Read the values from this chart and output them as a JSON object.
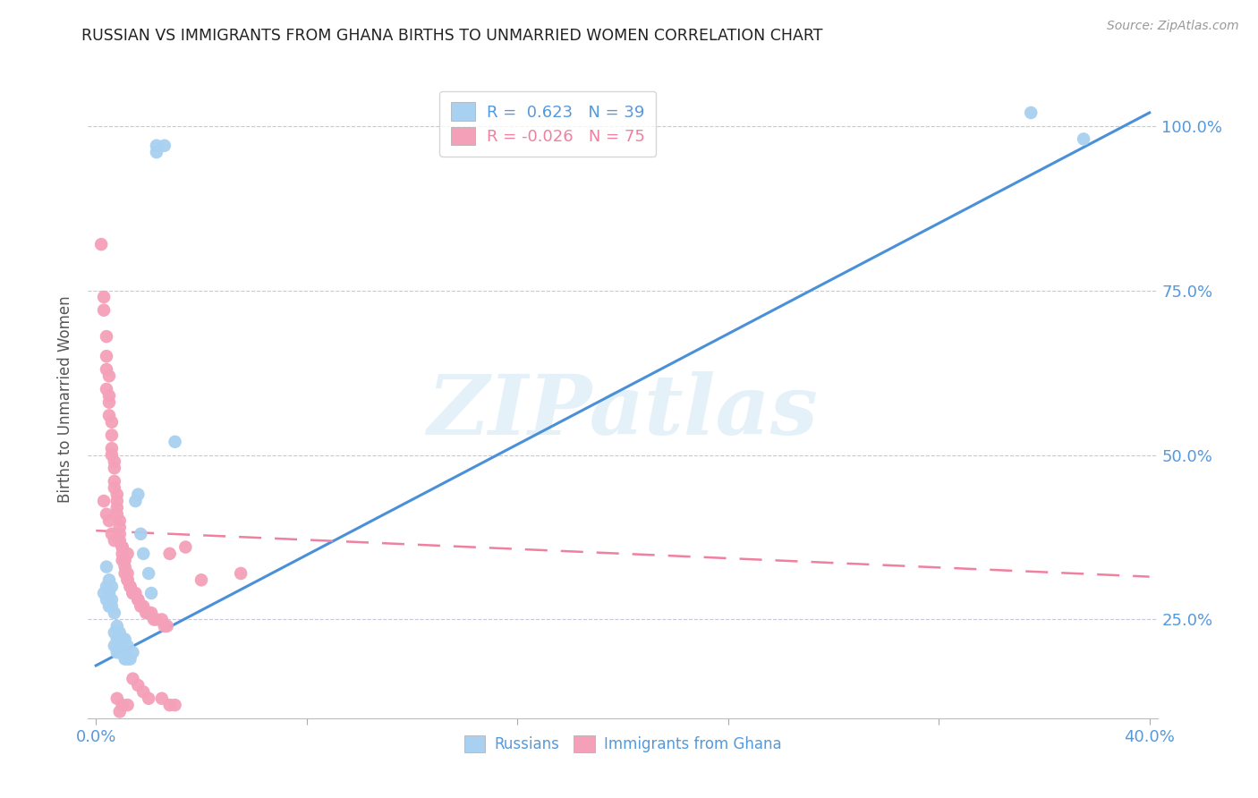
{
  "title": "RUSSIAN VS IMMIGRANTS FROM GHANA BIRTHS TO UNMARRIED WOMEN CORRELATION CHART",
  "source": "Source: ZipAtlas.com",
  "ylabel": "Births to Unmarried Women",
  "legend_russian": {
    "R": " 0.623",
    "N": "39"
  },
  "legend_ghana": {
    "R": "-0.026",
    "N": "75"
  },
  "watermark": "ZIPatlas",
  "russian_color": "#a8d0f0",
  "ghana_color": "#f4a0b8",
  "russian_line_color": "#4a90d9",
  "ghana_line_color": "#f080a0",
  "axis_label_color": "#5599dd",
  "title_color": "#222222",
  "grid_color": "#c8c8d8",
  "xlim": [
    0.0,
    0.4
  ],
  "ylim": [
    0.1,
    1.07
  ],
  "ytick_vals": [
    0.25,
    0.5,
    0.75,
    1.0
  ],
  "ytick_labels": [
    "25.0%",
    "50.0%",
    "75.0%",
    "100.0%"
  ],
  "xtick_vals": [
    0.0,
    0.08,
    0.16,
    0.24,
    0.32,
    0.4
  ],
  "xtick_labels": [
    "0.0%",
    "",
    "",
    "",
    "",
    "40.0%"
  ],
  "russians_data": [
    [
      0.023,
      0.97
    ],
    [
      0.026,
      0.97
    ],
    [
      0.023,
      0.96
    ],
    [
      0.355,
      1.02
    ],
    [
      0.375,
      0.98
    ],
    [
      0.004,
      0.3
    ],
    [
      0.005,
      0.29
    ],
    [
      0.005,
      0.27
    ],
    [
      0.006,
      0.27
    ],
    [
      0.006,
      0.28
    ],
    [
      0.007,
      0.26
    ],
    [
      0.007,
      0.23
    ],
    [
      0.008,
      0.24
    ],
    [
      0.008,
      0.22
    ],
    [
      0.009,
      0.23
    ],
    [
      0.01,
      0.22
    ],
    [
      0.01,
      0.21
    ],
    [
      0.011,
      0.22
    ],
    [
      0.012,
      0.21
    ],
    [
      0.004,
      0.33
    ],
    [
      0.005,
      0.31
    ],
    [
      0.006,
      0.3
    ],
    [
      0.003,
      0.29
    ],
    [
      0.004,
      0.28
    ],
    [
      0.015,
      0.43
    ],
    [
      0.016,
      0.44
    ],
    [
      0.017,
      0.38
    ],
    [
      0.018,
      0.35
    ],
    [
      0.02,
      0.32
    ],
    [
      0.021,
      0.29
    ],
    [
      0.007,
      0.21
    ],
    [
      0.008,
      0.2
    ],
    [
      0.009,
      0.2
    ],
    [
      0.01,
      0.2
    ],
    [
      0.011,
      0.19
    ],
    [
      0.012,
      0.19
    ],
    [
      0.013,
      0.19
    ],
    [
      0.014,
      0.2
    ],
    [
      0.03,
      0.52
    ]
  ],
  "ghana_data": [
    [
      0.002,
      0.82
    ],
    [
      0.003,
      0.74
    ],
    [
      0.003,
      0.72
    ],
    [
      0.004,
      0.68
    ],
    [
      0.004,
      0.65
    ],
    [
      0.004,
      0.63
    ],
    [
      0.005,
      0.62
    ],
    [
      0.004,
      0.6
    ],
    [
      0.005,
      0.59
    ],
    [
      0.005,
      0.58
    ],
    [
      0.005,
      0.56
    ],
    [
      0.006,
      0.55
    ],
    [
      0.006,
      0.53
    ],
    [
      0.006,
      0.51
    ],
    [
      0.006,
      0.5
    ],
    [
      0.007,
      0.49
    ],
    [
      0.007,
      0.48
    ],
    [
      0.007,
      0.46
    ],
    [
      0.007,
      0.45
    ],
    [
      0.008,
      0.44
    ],
    [
      0.008,
      0.43
    ],
    [
      0.008,
      0.42
    ],
    [
      0.008,
      0.41
    ],
    [
      0.009,
      0.4
    ],
    [
      0.009,
      0.39
    ],
    [
      0.009,
      0.38
    ],
    [
      0.009,
      0.37
    ],
    [
      0.01,
      0.36
    ],
    [
      0.01,
      0.35
    ],
    [
      0.01,
      0.34
    ],
    [
      0.011,
      0.34
    ],
    [
      0.011,
      0.33
    ],
    [
      0.011,
      0.32
    ],
    [
      0.012,
      0.32
    ],
    [
      0.012,
      0.31
    ],
    [
      0.012,
      0.31
    ],
    [
      0.013,
      0.3
    ],
    [
      0.013,
      0.3
    ],
    [
      0.014,
      0.29
    ],
    [
      0.014,
      0.29
    ],
    [
      0.015,
      0.29
    ],
    [
      0.016,
      0.28
    ],
    [
      0.016,
      0.28
    ],
    [
      0.017,
      0.27
    ],
    [
      0.018,
      0.27
    ],
    [
      0.019,
      0.26
    ],
    [
      0.02,
      0.26
    ],
    [
      0.021,
      0.26
    ],
    [
      0.022,
      0.25
    ],
    [
      0.023,
      0.25
    ],
    [
      0.025,
      0.25
    ],
    [
      0.026,
      0.24
    ],
    [
      0.027,
      0.24
    ],
    [
      0.003,
      0.43
    ],
    [
      0.004,
      0.41
    ],
    [
      0.005,
      0.4
    ],
    [
      0.006,
      0.38
    ],
    [
      0.007,
      0.37
    ],
    [
      0.01,
      0.36
    ],
    [
      0.012,
      0.35
    ],
    [
      0.014,
      0.16
    ],
    [
      0.016,
      0.15
    ],
    [
      0.018,
      0.14
    ],
    [
      0.02,
      0.13
    ],
    [
      0.028,
      0.35
    ],
    [
      0.034,
      0.36
    ],
    [
      0.028,
      0.12
    ],
    [
      0.009,
      0.11
    ],
    [
      0.04,
      0.31
    ],
    [
      0.055,
      0.32
    ],
    [
      0.008,
      0.13
    ],
    [
      0.01,
      0.12
    ],
    [
      0.012,
      0.12
    ],
    [
      0.025,
      0.13
    ],
    [
      0.03,
      0.12
    ]
  ]
}
